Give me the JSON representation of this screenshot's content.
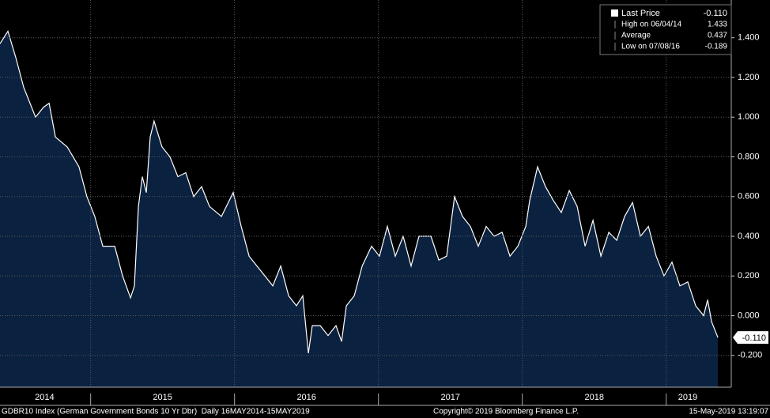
{
  "chart_data": {
    "type": "area",
    "series": [
      {
        "name": "Last Price",
        "color": "#ffffff",
        "fill": "#0b2140",
        "x": [
          2014.37,
          2014.425,
          2014.48,
          2014.535,
          2014.617,
          2014.672,
          2014.711,
          2014.755,
          2014.837,
          2014.919,
          2014.974,
          2015.029,
          2015.084,
          2015.167,
          2015.222,
          2015.277,
          2015.304,
          2015.332,
          2015.359,
          2015.387,
          2015.414,
          2015.441,
          2015.496,
          2015.551,
          2015.606,
          2015.661,
          2015.716,
          2015.771,
          2015.826,
          2015.909,
          2015.991,
          2016.046,
          2016.101,
          2016.156,
          2016.211,
          2016.266,
          2016.321,
          2016.376,
          2016.43,
          2016.474,
          2016.513,
          2016.54,
          2016.595,
          2016.65,
          2016.705,
          2016.744,
          2016.777,
          2016.832,
          2016.887,
          2016.952,
          2017.007,
          2017.062,
          2017.117,
          2017.172,
          2017.227,
          2017.282,
          2017.365,
          2017.42,
          2017.474,
          2017.529,
          2017.584,
          2017.639,
          2017.694,
          2017.749,
          2017.804,
          2017.859,
          2017.914,
          2017.969,
          2018.024,
          2018.051,
          2018.106,
          2018.161,
          2018.216,
          2018.271,
          2018.326,
          2018.381,
          2018.436,
          2018.491,
          2018.546,
          2018.601,
          2018.656,
          2018.711,
          2018.766,
          2018.821,
          2018.876,
          2018.93,
          2018.985,
          2019.04,
          2019.095,
          2019.15,
          2019.205,
          2019.26,
          2019.288,
          2019.315,
          2019.359
        ],
        "values": [
          1.37,
          1.433,
          1.3,
          1.15,
          1.0,
          1.05,
          1.07,
          0.9,
          0.85,
          0.75,
          0.6,
          0.5,
          0.35,
          0.35,
          0.2,
          0.09,
          0.15,
          0.55,
          0.7,
          0.62,
          0.9,
          0.98,
          0.85,
          0.8,
          0.7,
          0.72,
          0.6,
          0.65,
          0.55,
          0.5,
          0.62,
          0.45,
          0.3,
          0.25,
          0.2,
          0.15,
          0.25,
          0.1,
          0.05,
          0.1,
          -0.189,
          -0.05,
          -0.05,
          -0.1,
          -0.05,
          -0.13,
          0.05,
          0.1,
          0.25,
          0.35,
          0.3,
          0.45,
          0.3,
          0.4,
          0.25,
          0.4,
          0.4,
          0.28,
          0.3,
          0.6,
          0.5,
          0.45,
          0.35,
          0.45,
          0.4,
          0.42,
          0.3,
          0.35,
          0.45,
          0.58,
          0.75,
          0.65,
          0.58,
          0.52,
          0.63,
          0.55,
          0.35,
          0.48,
          0.3,
          0.42,
          0.38,
          0.5,
          0.57,
          0.4,
          0.45,
          0.3,
          0.2,
          0.27,
          0.15,
          0.17,
          0.05,
          0.0,
          0.08,
          -0.03,
          -0.11
        ]
      }
    ],
    "xlim": [
      2014.37,
      2019.452
    ],
    "ylim": [
      -0.36,
      1.59
    ],
    "yticks": [
      {
        "value": -0.2,
        "label": "-0.200"
      },
      {
        "value": 0,
        "label": "0.000"
      },
      {
        "value": 0.2,
        "label": "0.200"
      },
      {
        "value": 0.4,
        "label": "0.400"
      },
      {
        "value": 0.6,
        "label": "0.600"
      },
      {
        "value": 0.8,
        "label": "0.800"
      },
      {
        "value": 1.0,
        "label": "1.000"
      },
      {
        "value": 1.2,
        "label": "1.200"
      },
      {
        "value": 1.4,
        "label": "1.400"
      }
    ],
    "xticks": [
      {
        "value": 2014.68,
        "label": "2014"
      },
      {
        "value": 2015.5,
        "label": "2015"
      },
      {
        "value": 2016.5,
        "label": "2016"
      },
      {
        "value": 2017.5,
        "label": "2017"
      },
      {
        "value": 2018.5,
        "label": "2018"
      },
      {
        "value": 2019.15,
        "label": "2019"
      }
    ],
    "xgrid": [
      2015,
      2016,
      2017,
      2018,
      2019
    ],
    "grid": true,
    "legend": [
      {
        "label": "Last Price",
        "value": "-0.110"
      },
      {
        "label": "High on 06/04/14",
        "value": "1.433"
      },
      {
        "label": "Average",
        "value": "0.437"
      },
      {
        "label": "Low on 07/08/16",
        "value": "-0.189"
      }
    ],
    "footer": {
      "left": "GDBR10 Index (German Government Bonds 10 Yr Dbr)  Daily 16MAY2014-15MAY2019",
      "center": "Copyright© 2019 Bloomberg Finance L.P.",
      "right": "15-May-2019 13:19:07"
    }
  }
}
